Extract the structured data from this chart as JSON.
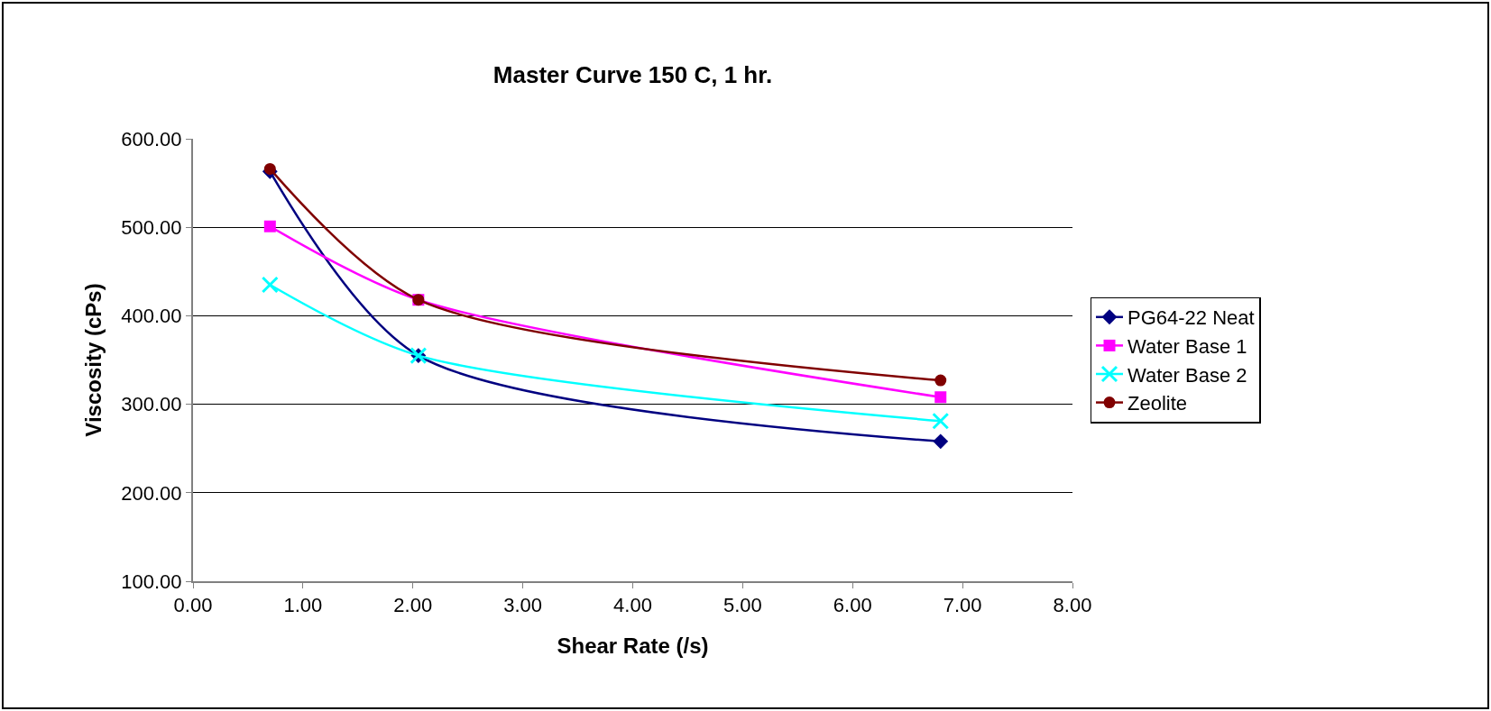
{
  "chart_data": {
    "type": "line",
    "title": "Master Curve 150 C, 1 hr.",
    "xlabel": "Shear Rate (/s)",
    "ylabel": "Viscosity (cPs)",
    "xlim": [
      0,
      8
    ],
    "xticks": [
      {
        "value": 0,
        "label": "0.00"
      },
      {
        "value": 1,
        "label": "1.00"
      },
      {
        "value": 2,
        "label": "2.00"
      },
      {
        "value": 3,
        "label": "3.00"
      },
      {
        "value": 4,
        "label": "4.00"
      },
      {
        "value": 5,
        "label": "5.00"
      },
      {
        "value": 6,
        "label": "6.00"
      },
      {
        "value": 7,
        "label": "7.00"
      },
      {
        "value": 8,
        "label": "8.00"
      }
    ],
    "ylim": [
      100,
      600
    ],
    "yticks": [
      {
        "value": 100,
        "label": "100.00"
      },
      {
        "value": 200,
        "label": "200.00"
      },
      {
        "value": 300,
        "label": "300.00"
      },
      {
        "value": 400,
        "label": "400.00"
      },
      {
        "value": 500,
        "label": "500.00"
      },
      {
        "value": 600,
        "label": "600.00"
      }
    ],
    "x": [
      0.7,
      2.05,
      6.8
    ],
    "series": [
      {
        "name": "PG64-22 Neat",
        "color": "#000080",
        "marker": "diamond",
        "values": [
          563,
          355,
          258
        ]
      },
      {
        "name": "Water Base 1",
        "color": "#ff00ff",
        "marker": "square",
        "values": [
          501,
          418,
          308
        ]
      },
      {
        "name": "Water Base 2",
        "color": "#00ffff",
        "marker": "cross",
        "values": [
          435,
          355,
          281
        ]
      },
      {
        "name": "Zeolite",
        "color": "#800000",
        "marker": "circle",
        "values": [
          566,
          418,
          327
        ]
      }
    ],
    "grid": "y",
    "legend": "right"
  }
}
